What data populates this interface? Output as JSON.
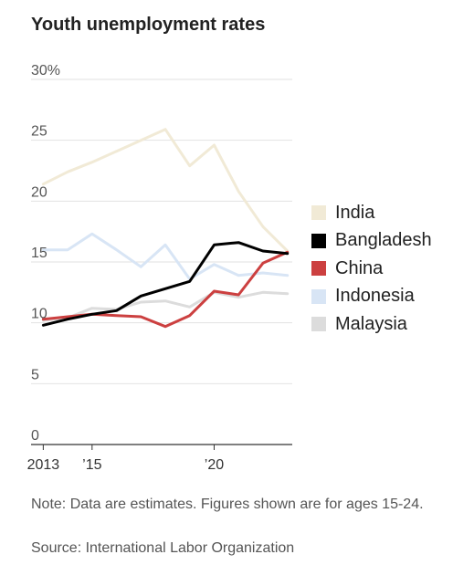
{
  "title": "Youth unemployment rates",
  "note": "Note: Data are estimates. Figures shown are for ages 15-24.",
  "source": "Source: International Labor Organization",
  "chart_data": {
    "type": "line",
    "title": "Youth unemployment rates",
    "x": [
      2013,
      2014,
      2015,
      2016,
      2017,
      2018,
      2019,
      2020,
      2021,
      2022,
      2023
    ],
    "xlim": [
      2012.5,
      2023.2
    ],
    "ylim": [
      0,
      30
    ],
    "y_ticks": [
      {
        "value": 0,
        "label": "0"
      },
      {
        "value": 5,
        "label": "5"
      },
      {
        "value": 10,
        "label": "10"
      },
      {
        "value": 15,
        "label": "15"
      },
      {
        "value": 20,
        "label": "20"
      },
      {
        "value": 25,
        "label": "25"
      },
      {
        "value": 30,
        "label": "30%"
      }
    ],
    "x_ticks": [
      {
        "value": 2013,
        "label": "2013"
      },
      {
        "value": 2015,
        "label": "’15"
      },
      {
        "value": 2020,
        "label": "’20"
      }
    ],
    "grid": true,
    "legend_position": "right",
    "series": [
      {
        "name": "India",
        "color": "#f1ead6",
        "values": [
          21.4,
          22.4,
          23.2,
          24.1,
          25.0,
          25.9,
          22.9,
          24.6,
          20.8,
          17.9,
          15.9
        ]
      },
      {
        "name": "Indonesia",
        "color": "#d8e5f5",
        "values": [
          16.0,
          16.0,
          17.3,
          16.0,
          14.6,
          16.4,
          13.6,
          14.8,
          13.9,
          14.1,
          13.9
        ]
      },
      {
        "name": "Malaysia",
        "color": "#dcdcdc",
        "values": [
          10.2,
          10.4,
          11.2,
          11.1,
          11.7,
          11.8,
          11.3,
          12.5,
          12.1,
          12.5,
          12.4
        ]
      },
      {
        "name": "China",
        "color": "#cc4040",
        "values": [
          10.3,
          10.5,
          10.7,
          10.6,
          10.5,
          9.7,
          10.6,
          12.6,
          12.3,
          14.9,
          15.8
        ]
      },
      {
        "name": "Bangladesh",
        "color": "#000000",
        "values": [
          9.8,
          10.3,
          10.7,
          11.0,
          12.2,
          12.8,
          13.4,
          16.4,
          16.6,
          15.9,
          15.7
        ]
      }
    ],
    "legend": [
      {
        "name": "India",
        "color": "#f1ead6"
      },
      {
        "name": "Bangladesh",
        "color": "#000000"
      },
      {
        "name": "China",
        "color": "#cc4040"
      },
      {
        "name": "Indonesia",
        "color": "#d8e5f5"
      },
      {
        "name": "Malaysia",
        "color": "#dcdcdc"
      }
    ]
  }
}
